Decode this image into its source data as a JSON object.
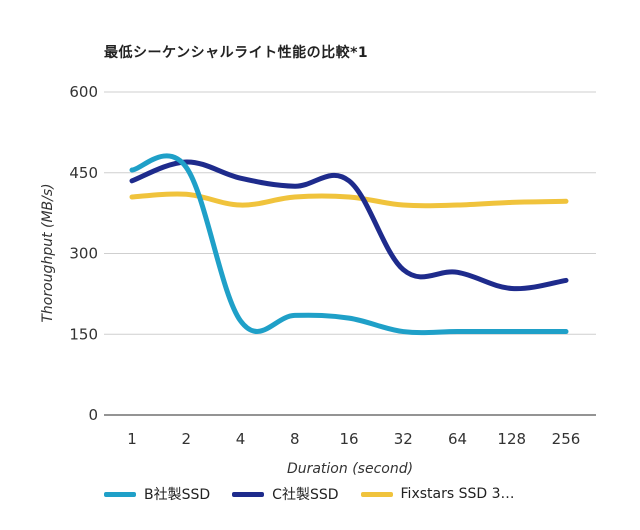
{
  "chart_data": {
    "type": "line",
    "title": "最低シーケンシャルライト性能の比較*1",
    "xlabel": "Duration (second)",
    "ylabel": "Thoroughput (MB/s)",
    "categories": [
      "1",
      "2",
      "4",
      "8",
      "16",
      "32",
      "64",
      "128",
      "256"
    ],
    "yticks": [
      0,
      150,
      300,
      450,
      600
    ],
    "ylim": [
      0,
      600
    ],
    "grid": true,
    "legend_position": "bottom",
    "series": [
      {
        "name": "B社製SSD",
        "color": "#1fa0c8",
        "values": [
          455,
          460,
          175,
          185,
          180,
          155,
          155,
          155,
          155
        ]
      },
      {
        "name": "C社製SSD",
        "color": "#1e2b8c",
        "values": [
          435,
          470,
          440,
          425,
          435,
          270,
          265,
          235,
          250
        ]
      },
      {
        "name": "Fixstars SSD 3…",
        "color": "#f0c33c",
        "values": [
          405,
          410,
          390,
          405,
          405,
          390,
          390,
          395,
          397
        ]
      }
    ]
  }
}
